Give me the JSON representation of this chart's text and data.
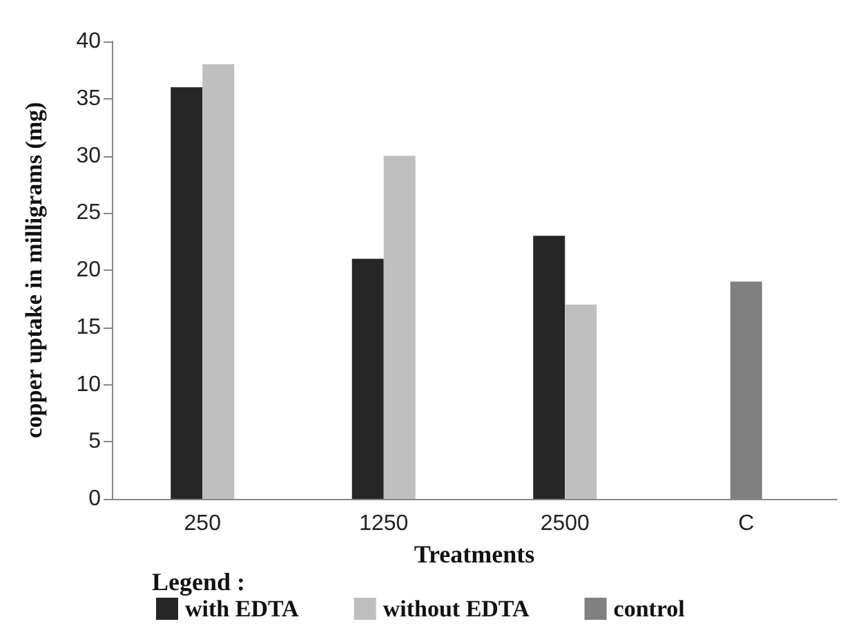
{
  "chart_data": {
    "type": "bar",
    "xlabel": "Treatments",
    "ylabel": "copper uptake in milligrams (mg)",
    "legend_title": "Legend :",
    "categories": [
      "250",
      "1250",
      "2500",
      "C"
    ],
    "series": [
      {
        "name": "with EDTA",
        "color": "#262626",
        "values": [
          36,
          21,
          23,
          null
        ]
      },
      {
        "name": "without EDTA",
        "color": "#bfbfbf",
        "values": [
          38,
          30,
          17,
          null
        ]
      },
      {
        "name": "control",
        "color": "#808080",
        "values": [
          null,
          null,
          null,
          19
        ]
      }
    ],
    "ylim": [
      0,
      40
    ],
    "yticks": [
      0,
      5,
      10,
      15,
      20,
      25,
      30,
      35,
      40
    ],
    "grid": false,
    "legend": "bottom"
  }
}
